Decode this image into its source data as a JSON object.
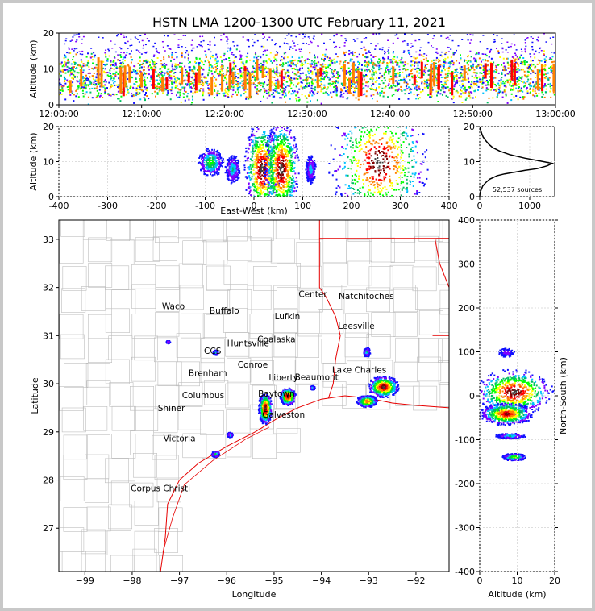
{
  "title": "HSTN LMA 1200-1300 UTC February 11, 2021",
  "chart_data": [
    {
      "id": "time-altitude",
      "type": "heatmap",
      "ylabel": "Altitude (km)",
      "xlim": [
        "12:00:00",
        "13:00:00"
      ],
      "ylim": [
        0,
        20
      ],
      "xticks": [
        "12:00:00",
        "12:10:00",
        "12:20:00",
        "12:30:00",
        "12:40:00",
        "12:50:00",
        "13:00:00"
      ],
      "yticks": [
        0,
        10,
        20
      ],
      "density_bands_altitude_km": [
        3,
        13
      ]
    },
    {
      "id": "eastwest-altitude",
      "type": "heatmap",
      "xlabel": "East-West (km)",
      "ylabel": "Altitude (km)",
      "xlim": [
        -400,
        400
      ],
      "ylim": [
        0,
        20
      ],
      "xticks": [
        -400,
        -300,
        -200,
        -100,
        0,
        100,
        200,
        300,
        400
      ],
      "yticks": [
        0,
        10,
        20
      ],
      "clusters": [
        {
          "x": -90,
          "alt": 10,
          "width": 25,
          "height": 4,
          "intensity": 0.5
        },
        {
          "x": -45,
          "alt": 8,
          "width": 15,
          "height": 4,
          "intensity": 0.35
        },
        {
          "x": 15,
          "alt": 8,
          "width": 35,
          "height": 14,
          "intensity": 1.0
        },
        {
          "x": 55,
          "alt": 8,
          "width": 35,
          "height": 14,
          "intensity": 1.0
        },
        {
          "x": 115,
          "alt": 8,
          "width": 10,
          "height": 4,
          "intensity": 0.3
        },
        {
          "x": 255,
          "alt": 10,
          "width": 100,
          "height": 18,
          "intensity": 1.0
        }
      ]
    },
    {
      "id": "altitude-histogram",
      "type": "line",
      "ylim": [
        0,
        20
      ],
      "xlim": [
        0,
        1500
      ],
      "xticks": [
        0,
        1000
      ],
      "yticks": [
        0,
        10,
        20
      ],
      "annotation": "52,537 sources",
      "x": [
        0,
        5,
        30,
        60,
        120,
        200,
        350,
        500,
        700,
        900,
        1150,
        1350,
        1450,
        1200,
        900,
        600,
        400,
        260,
        180,
        120,
        70,
        40,
        20,
        5
      ],
      "y": [
        0,
        1,
        2,
        3,
        4,
        5,
        6,
        6.5,
        7,
        7.5,
        8,
        8.8,
        9.5,
        10.2,
        11,
        12,
        13,
        14,
        15,
        16,
        17,
        18,
        19,
        20
      ]
    },
    {
      "id": "plan-view",
      "type": "scatter",
      "xlabel": "Longitude",
      "ylabel": "Latitude",
      "xlim": [
        -99.55,
        -91.3
      ],
      "ylim": [
        26.1,
        33.4
      ],
      "xticks": [
        -99,
        -98,
        -97,
        -96,
        -95,
        -94,
        -93,
        -92
      ],
      "yticks": [
        27,
        28,
        29,
        30,
        31,
        32,
        33
      ],
      "cities": [
        {
          "name": "Waco",
          "lon": -97.13,
          "lat": 31.55
        },
        {
          "name": "Buffalo",
          "lon": -96.05,
          "lat": 31.46
        },
        {
          "name": "Lufkin",
          "lon": -94.72,
          "lat": 31.34
        },
        {
          "name": "Center",
          "lon": -94.18,
          "lat": 31.8
        },
        {
          "name": "Natchitoches",
          "lon": -93.05,
          "lat": 31.76
        },
        {
          "name": "Leesville",
          "lon": -93.26,
          "lat": 31.14
        },
        {
          "name": "Coalaska",
          "lon": -94.95,
          "lat": 30.86
        },
        {
          "name": "Huntsville",
          "lon": -95.55,
          "lat": 30.78
        },
        {
          "name": "CCS",
          "lon": -96.3,
          "lat": 30.62
        },
        {
          "name": "Conroe",
          "lon": -95.45,
          "lat": 30.34
        },
        {
          "name": "Brenham",
          "lon": -96.4,
          "lat": 30.16
        },
        {
          "name": "Liberty",
          "lon": -94.8,
          "lat": 30.07
        },
        {
          "name": "Beaumont",
          "lon": -94.1,
          "lat": 30.08
        },
        {
          "name": "Lake Charles",
          "lon": -93.2,
          "lat": 30.23
        },
        {
          "name": "Columbus",
          "lon": -96.5,
          "lat": 29.7
        },
        {
          "name": "Shiner",
          "lon": -97.17,
          "lat": 29.43
        },
        {
          "name": "Baytown",
          "lon": -94.95,
          "lat": 29.73
        },
        {
          "name": "Galveston",
          "lon": -94.8,
          "lat": 29.3
        },
        {
          "name": "Victoria",
          "lon": -97.0,
          "lat": 28.8
        },
        {
          "name": "Corpus Christi",
          "lon": -97.4,
          "lat": 27.77
        }
      ],
      "clusters": [
        {
          "lon": -95.2,
          "lat": 29.5,
          "rlon": 0.14,
          "rlat": 0.32,
          "intensity": 1.0
        },
        {
          "lon": -94.72,
          "lat": 29.75,
          "rlon": 0.16,
          "rlat": 0.18,
          "intensity": 1.0
        },
        {
          "lon": -92.7,
          "lat": 29.95,
          "rlon": 0.32,
          "rlat": 0.22,
          "intensity": 1.0
        },
        {
          "lon": -93.05,
          "lat": 29.65,
          "rlon": 0.22,
          "rlat": 0.12,
          "intensity": 0.8
        },
        {
          "lon": -96.25,
          "lat": 28.55,
          "rlon": 0.08,
          "rlat": 0.06,
          "intensity": 0.5
        },
        {
          "lon": -95.95,
          "lat": 28.95,
          "rlon": 0.06,
          "rlat": 0.05,
          "intensity": 0.35
        },
        {
          "lon": -93.05,
          "lat": 30.67,
          "rlon": 0.07,
          "rlat": 0.1,
          "intensity": 0.35
        },
        {
          "lon": -96.25,
          "lat": 30.66,
          "rlon": 0.05,
          "rlat": 0.05,
          "intensity": 0.3
        },
        {
          "lon": -94.2,
          "lat": 29.93,
          "rlon": 0.05,
          "rlat": 0.04,
          "intensity": 0.3
        },
        {
          "lon": -97.25,
          "lat": 30.88,
          "rlon": 0.04,
          "rlat": 0.03,
          "intensity": 0.2
        }
      ]
    },
    {
      "id": "altitude-northsouth",
      "type": "heatmap",
      "xlabel": "Altitude (km)",
      "ylabel": "North-South (km)",
      "xlim": [
        0,
        20
      ],
      "ylim": [
        -400,
        400
      ],
      "xticks": [
        0,
        10,
        20
      ],
      "yticks": [
        -400,
        -300,
        -200,
        -100,
        0,
        100,
        200,
        300,
        400
      ],
      "clusters": [
        {
          "alt": 9,
          "y": 10,
          "width": 10,
          "height": 50,
          "intensity": 1.0
        },
        {
          "alt": 7,
          "y": -40,
          "width": 7,
          "height": 25,
          "intensity": 0.9
        },
        {
          "alt": 8,
          "y": -90,
          "width": 4,
          "height": 6,
          "intensity": 0.35
        },
        {
          "alt": 9,
          "y": -138,
          "width": 3,
          "height": 8,
          "intensity": 0.6
        },
        {
          "alt": 7,
          "y": 100,
          "width": 2,
          "height": 10,
          "intensity": 0.2
        }
      ]
    }
  ],
  "colors": {
    "scale": [
      "#1010ff",
      "#7f00ff",
      "#00c0ff",
      "#00c060",
      "#00ff00",
      "#ffff00",
      "#ff8000",
      "#ff0000",
      "#800000",
      "#404040",
      "#c8c8c8"
    ],
    "state_line": "#e60000",
    "county_line": "#bdbdbd",
    "grid": "#dddddd"
  }
}
